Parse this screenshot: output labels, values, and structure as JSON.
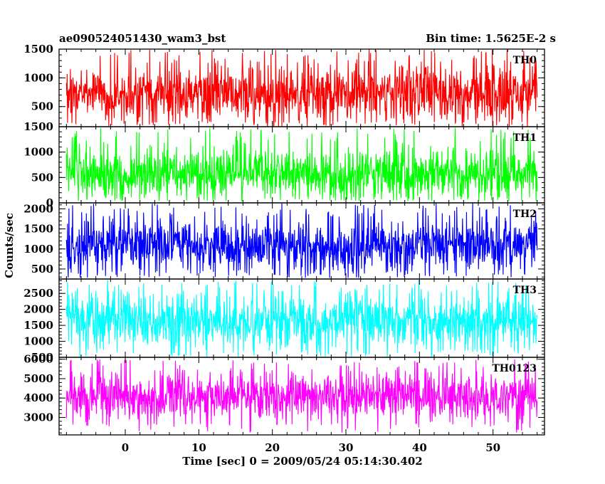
{
  "chart_data": {
    "type": "line",
    "header_left": "ae090524051430_wam3_bst",
    "header_right": "Bin time: 1.5625E-2 s",
    "xlabel": "Time [sec] 0 = 2009/05/24 05:14:30.402",
    "ylabel": "Counts/sec",
    "xlim": [
      -9,
      57
    ],
    "x_range": [
      -8,
      56
    ],
    "x_ticks": [
      0,
      10,
      20,
      30,
      40,
      50
    ],
    "x_tick_labels": [
      "0",
      "10",
      "20",
      "30",
      "40",
      "50"
    ],
    "x_minor_step": 2,
    "panels": [
      {
        "name": "TH0",
        "color": "#ff0000",
        "ylim": [
          150,
          1500
        ],
        "y_ticks": [
          500,
          1000,
          1500
        ],
        "y_tick_labels": [
          "500",
          "1000",
          "1500"
        ],
        "y_minor_step": 100,
        "mean": 720,
        "upper_envelope": 1250,
        "lower_envelope": 240,
        "max": 1500,
        "min": 150
      },
      {
        "name": "TH1",
        "color": "#00ff00",
        "ylim": [
          0,
          1500
        ],
        "y_ticks": [
          0,
          500,
          1000,
          1500
        ],
        "y_tick_labels": [
          "0",
          "500",
          "1000",
          "1500"
        ],
        "y_minor_step": 100,
        "mean": 560,
        "upper_envelope": 1150,
        "lower_envelope": 120,
        "max": 1480,
        "min": 40
      },
      {
        "name": "TH2",
        "color": "#0000ff",
        "ylim": [
          250,
          2150
        ],
        "y_ticks": [
          500,
          1000,
          1500,
          2000
        ],
        "y_tick_labels": [
          "500",
          "1000",
          "1500",
          "2000"
        ],
        "y_minor_step": 100,
        "mean": 1100,
        "upper_envelope": 1800,
        "lower_envelope": 500,
        "max": 2150,
        "min": 280
      },
      {
        "name": "TH3",
        "color": "#00ffff",
        "ylim": [
          500,
          2950
        ],
        "y_ticks": [
          500,
          1000,
          1500,
          2000,
          2500
        ],
        "y_tick_labels": [
          "500",
          "1000",
          "1500",
          "2000",
          "2500"
        ],
        "y_minor_step": 100,
        "mean": 1650,
        "upper_envelope": 2500,
        "lower_envelope": 750,
        "max": 2950,
        "min": 520
      },
      {
        "name": "TH0123",
        "color": "#ff00ff",
        "ylim": [
          2100,
          6100
        ],
        "y_ticks": [
          3000,
          4000,
          5000,
          6000
        ],
        "y_tick_labels": [
          "3000",
          "4000",
          "5000",
          "6000"
        ],
        "y_minor_step": 200,
        "mean": 4050,
        "upper_envelope": 5300,
        "lower_envelope": 2700,
        "max": 6000,
        "min": 2200
      }
    ]
  }
}
